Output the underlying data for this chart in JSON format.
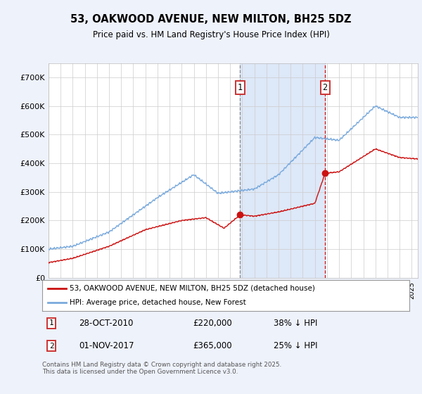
{
  "title": "53, OAKWOOD AVENUE, NEW MILTON, BH25 5DZ",
  "subtitle": "Price paid vs. HM Land Registry's House Price Index (HPI)",
  "background_color": "#eef2fb",
  "plot_background": "#ffffff",
  "hpi_color": "#7aaadd",
  "sale_color": "#cc1111",
  "dashed_line1_color": "#888888",
  "dashed_line2_color": "#cc1111",
  "shaded_region_color": "#dde8f8",
  "ylim": [
    0,
    750000
  ],
  "yticks": [
    0,
    100000,
    200000,
    300000,
    400000,
    500000,
    600000,
    700000
  ],
  "ytick_labels": [
    "£0",
    "£100K",
    "£200K",
    "£300K",
    "£400K",
    "£500K",
    "£600K",
    "£700K"
  ],
  "sale1_date": 2010.83,
  "sale1_price": 220000,
  "sale2_date": 2017.84,
  "sale2_price": 365000,
  "legend_entry1": "53, OAKWOOD AVENUE, NEW MILTON, BH25 5DZ (detached house)",
  "legend_entry2": "HPI: Average price, detached house, New Forest",
  "footer": "Contains HM Land Registry data © Crown copyright and database right 2025.\nThis data is licensed under the Open Government Licence v3.0.",
  "xmin": 1995,
  "xmax": 2025.5
}
